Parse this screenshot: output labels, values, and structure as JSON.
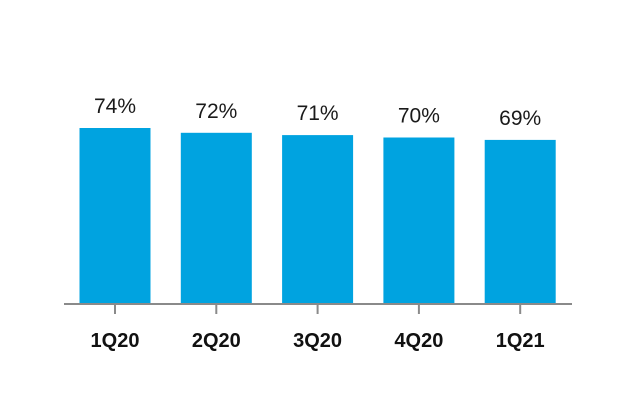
{
  "chart_data": {
    "type": "bar",
    "categories": [
      "1Q20",
      "2Q20",
      "3Q20",
      "4Q20",
      "1Q21"
    ],
    "values": [
      74,
      72,
      71,
      70,
      69
    ],
    "data_labels": [
      "74%",
      "72%",
      "71%",
      "70%",
      "69%"
    ],
    "title": "",
    "xlabel": "",
    "ylabel": "",
    "ylim": [
      0,
      74
    ],
    "grid": false,
    "legend": "none",
    "colors": {
      "bar": "#00A3E0",
      "axis": "#8a8a8a",
      "label": "#1a1a1a",
      "tick": "#111111"
    }
  }
}
